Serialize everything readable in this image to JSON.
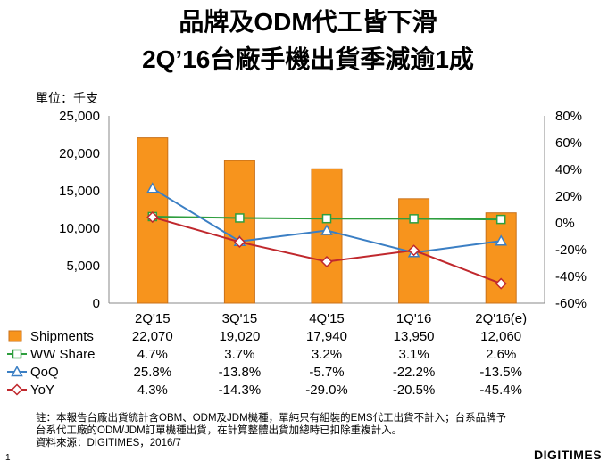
{
  "title_line1": "品牌及ODM代工皆下滑",
  "title_line2": "2Q’16台廠手機出貨季減逾1成",
  "unit_label": "單位：千支",
  "chart_data": {
    "type": "bar+line",
    "categories": [
      "2Q'15",
      "3Q'15",
      "4Q'15",
      "1Q'16",
      "2Q'16(e)"
    ],
    "bar_series": {
      "name": "Shipments",
      "values": [
        22070,
        19020,
        17940,
        13950,
        12060
      ],
      "color": "#f7941d"
    },
    "line_series": [
      {
        "name": "WW Share",
        "values": [
          4.7,
          3.7,
          3.2,
          3.1,
          2.6
        ],
        "color": "#2e9e3e",
        "marker": "square"
      },
      {
        "name": "QoQ",
        "values": [
          25.8,
          -13.8,
          -5.7,
          -22.2,
          -13.5
        ],
        "color": "#3b7fc4",
        "marker": "triangle"
      },
      {
        "name": "YoY",
        "values": [
          4.3,
          -14.3,
          -29.0,
          -20.5,
          -45.4
        ],
        "color": "#c0282d",
        "marker": "diamond"
      }
    ],
    "y_left": {
      "min": 0,
      "max": 25000,
      "ticks": [
        "0",
        "5,000",
        "10,000",
        "15,000",
        "20,000",
        "25,000"
      ]
    },
    "y_right": {
      "min": -60,
      "max": 80,
      "ticks": [
        "-60%",
        "-40%",
        "-20%",
        "0%",
        "20%",
        "40%",
        "60%",
        "80%"
      ]
    },
    "table": {
      "rows": [
        {
          "label": "Shipments",
          "cells": [
            "22,070",
            "19,020",
            "17,940",
            "13,950",
            "12,060"
          ]
        },
        {
          "label": "WW Share",
          "cells": [
            "4.7%",
            "3.7%",
            "3.2%",
            "3.1%",
            "2.6%"
          ]
        },
        {
          "label": "QoQ",
          "cells": [
            "25.8%",
            "-13.8%",
            "-5.7%",
            "-22.2%",
            "-13.5%"
          ]
        },
        {
          "label": "YoY",
          "cells": [
            "4.3%",
            "-14.3%",
            "-29.0%",
            "-20.5%",
            "-45.4%"
          ]
        }
      ]
    }
  },
  "note_line1": "註：本報告台廠出貨統計含OBM、ODM及JDM機種，單純只有組裝的EMS代工出貨不計入；台系品牌予",
  "note_line2": "台系代工廠的ODM/JDM訂單機種出貨，在計算整體出貨加總時已扣除重複計入。",
  "source": "資料來源：DIGITIMES，2016/7",
  "page_number": "1",
  "logo_text": "DIGITIMES"
}
